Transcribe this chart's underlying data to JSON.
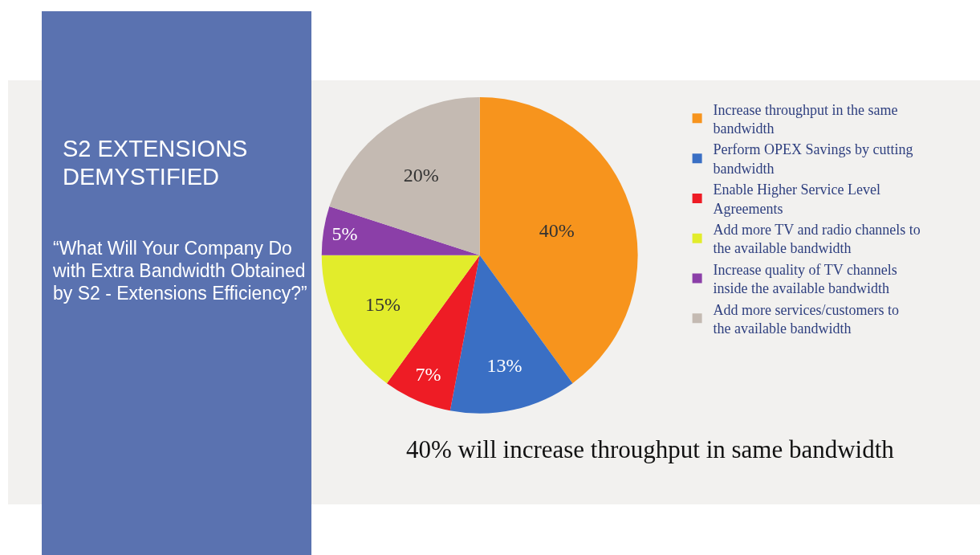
{
  "chart_data": {
    "type": "pie",
    "title": "S2 EXTENSIONS DEMYSTIFIED",
    "subtitle": "“What Will Your Company Do with Extra Bandwidth Obtained by S2 - Extensions Efficiency?”",
    "categories": [
      "Increase throughput in the same bandwidth",
      "Perform OPEX Savings by cutting bandwidth",
      "Enable Higher Service Level Agreements",
      "Add more TV and radio channels to the available bandwidth",
      "Increase quality of TV channels inside the available bandwidth",
      "Add more services/customers to the available bandwidth"
    ],
    "values": [
      40,
      13,
      7,
      15,
      5,
      20
    ],
    "value_labels": [
      "40%",
      "13%",
      "7%",
      "15%",
      "5%",
      "20%"
    ],
    "colors": [
      "#f7941d",
      "#3a6fc4",
      "#ee1c25",
      "#e2ec2b",
      "#8b3fa8",
      "#c4bab2"
    ],
    "legend": "right",
    "annotations": [
      "40% will increase throughput in same bandwidth"
    ]
  }
}
